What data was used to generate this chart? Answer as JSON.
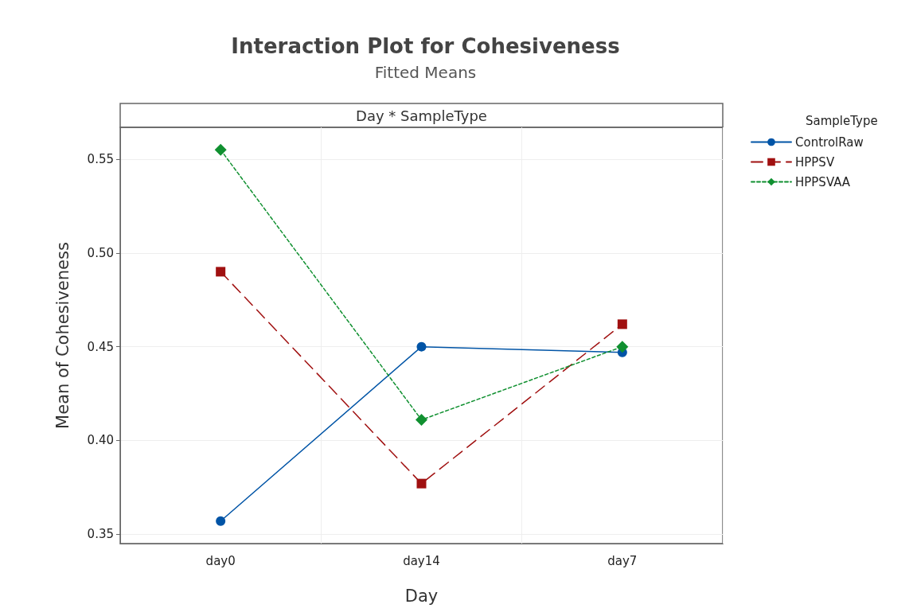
{
  "chart_data": {
    "type": "line",
    "title": "Interaction Plot for Cohesiveness",
    "subtitle": "Fitted Means",
    "annotations": [
      "Day * SampleType"
    ],
    "xlabel": "Day",
    "ylabel": "Mean of Cohesiveness",
    "legend_title": "SampleType",
    "categories": [
      "day0",
      "day14",
      "day7"
    ],
    "series": [
      {
        "name": "ControlRaw",
        "color": "#0054a6",
        "marker": "circle",
        "line_style": "solid",
        "values": [
          0.357,
          0.45,
          0.447
        ]
      },
      {
        "name": "HPPSV",
        "color": "#a01010",
        "marker": "square",
        "line_style": "dashed",
        "values": [
          0.49,
          0.377,
          0.462
        ]
      },
      {
        "name": "HPPSVAA",
        "color": "#109030",
        "marker": "diamond",
        "line_style": "dotted",
        "values": [
          0.555,
          0.411,
          0.45
        ]
      }
    ],
    "ylim": [
      0.345,
      0.567
    ],
    "yticks": [
      0.35,
      {
        "value": 0.4,
        "label": "0.40"
      },
      0.45,
      {
        "value": 0.5,
        "label": "0.50"
      },
      0.55
    ],
    "grid": true,
    "legend": "top right"
  }
}
